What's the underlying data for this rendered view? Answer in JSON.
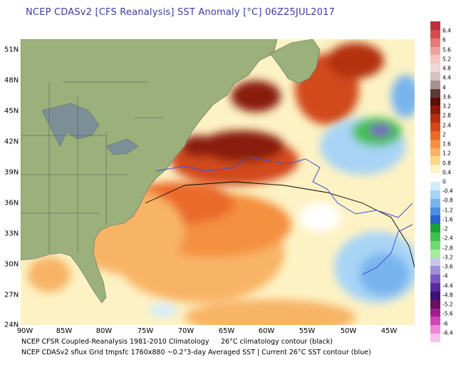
{
  "title": "NCEP CDASv2 [CFS Reanalysis] SST Anomaly [°C] 06Z25JUL2017",
  "map": {
    "x_ticks": [
      "90W",
      "85W",
      "80W",
      "75W",
      "70W",
      "65W",
      "60W",
      "55W",
      "50W",
      "45W"
    ],
    "y_ticks": [
      "51N",
      "48N",
      "45N",
      "42N",
      "39N",
      "36N",
      "33N",
      "30N",
      "27N",
      "24N"
    ],
    "land_color": "#9bb07a",
    "climatology_contour_color": "#000000",
    "current_contour_color": "#3b4fd6"
  },
  "colorbar": {
    "labels": [
      "6.4",
      "6",
      "5.6",
      "5.2",
      "4.8",
      "4.4",
      "4",
      "3.6",
      "3.2",
      "2.8",
      "2.4",
      "2",
      "1.6",
      "1.2",
      "0.8",
      "0.4",
      "0",
      "-0.4",
      "-0.8",
      "-1.2",
      "-1.6",
      "-2",
      "-2.4",
      "-2.8",
      "-3.2",
      "-3.6",
      "-4",
      "-4.4",
      "-4.8",
      "-5.2",
      "-5.6",
      "-6",
      "-6.4"
    ],
    "colors": [
      "#b8323a",
      "#d24c50",
      "#e47a7a",
      "#eea3a0",
      "#f4c6c2",
      "#f0d8d6",
      "#d6c3c0",
      "#a89290",
      "#5e3a36",
      "#5a0e0a",
      "#8a1a0c",
      "#b4300e",
      "#d24a1a",
      "#ea6a2a",
      "#f49040",
      "#f8b466",
      "#fbd88e",
      "#fdf2c4",
      "#ffffff",
      "#d4ecfa",
      "#a8d4f6",
      "#78b4ee",
      "#4c8ee0",
      "#2a64c8",
      "#1aa03a",
      "#42c04a",
      "#72d876",
      "#a6ec9c",
      "#c8c8ec",
      "#a090d8",
      "#7a5ac2",
      "#5a2aa0",
      "#3e1274",
      "#6a1060",
      "#a01e8a",
      "#d046b6",
      "#ee86d8",
      "#f8c2ee"
    ]
  },
  "footer": {
    "line1_left": "NCEP CFSR Coupled-Reanalysis 1981-2010 Climatology",
    "line1_right": "26°C climatology contour (black)",
    "line2_left": "NCEP CDASv2 sflux Grid tmpsfc 1760x880 ~0.2°",
    "line2_right": "3-day Averaged SST | Current 26°C SST contour (blue)"
  }
}
